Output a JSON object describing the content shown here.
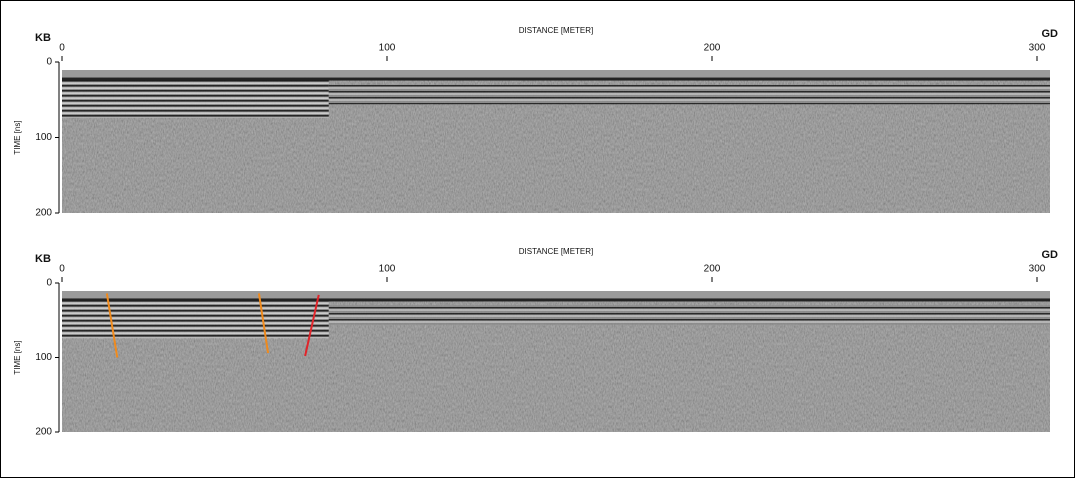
{
  "chart_data": [
    {
      "type": "radargram",
      "left_label": "KB",
      "right_label": "GD",
      "x_label": "DISTANCE [METER]",
      "y_label": "TIME [ns]",
      "xlim": [
        0,
        304
      ],
      "xticks": [
        0,
        100,
        200,
        300
      ],
      "ylim": [
        0,
        200
      ],
      "yticks": [
        0,
        100,
        200
      ],
      "y_inverted": true,
      "lines": []
    },
    {
      "type": "radargram",
      "left_label": "KB",
      "right_label": "GD",
      "x_label": "DISTANCE [METER]",
      "y_label": "TIME [ns]",
      "xlim": [
        0,
        304
      ],
      "xticks": [
        0,
        100,
        200,
        300
      ],
      "ylim": [
        0,
        200
      ],
      "yticks": [
        0,
        100,
        200
      ],
      "y_inverted": true,
      "lines": [
        {
          "color": "#f08a1c",
          "x": [
            13.8,
            17
          ],
          "y": [
            14,
            100
          ]
        },
        {
          "color": "#f08a1c",
          "x": [
            60.6,
            63.4
          ],
          "y": [
            14,
            94
          ]
        },
        {
          "color": "#e0242a",
          "x": [
            79,
            74.8
          ],
          "y": [
            16,
            98
          ]
        }
      ]
    }
  ]
}
